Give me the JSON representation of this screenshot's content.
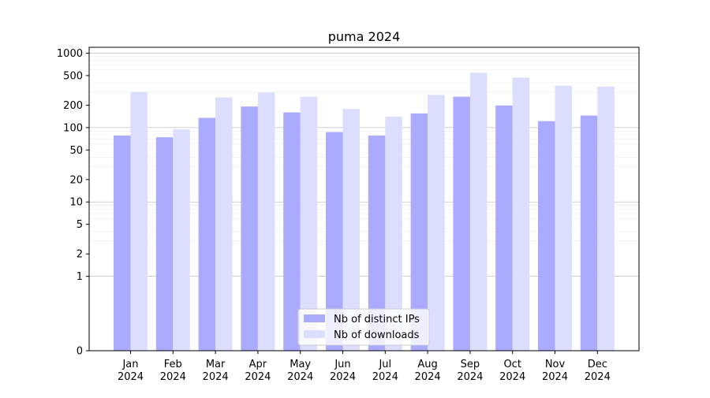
{
  "chart_data": {
    "type": "bar",
    "title": "puma 2024",
    "xlabel": "",
    "ylabel": "",
    "y_scale": "symlog",
    "ylim": [
      0,
      1200
    ],
    "y_ticks": [
      0,
      1,
      2,
      5,
      10,
      20,
      50,
      100,
      200,
      500,
      1000
    ],
    "categories": [
      {
        "month": "Jan",
        "year": "2024"
      },
      {
        "month": "Feb",
        "year": "2024"
      },
      {
        "month": "Mar",
        "year": "2024"
      },
      {
        "month": "Apr",
        "year": "2024"
      },
      {
        "month": "May",
        "year": "2024"
      },
      {
        "month": "Jun",
        "year": "2024"
      },
      {
        "month": "Jul",
        "year": "2024"
      },
      {
        "month": "Aug",
        "year": "2024"
      },
      {
        "month": "Sep",
        "year": "2024"
      },
      {
        "month": "Oct",
        "year": "2024"
      },
      {
        "month": "Nov",
        "year": "2024"
      },
      {
        "month": "Dec",
        "year": "2024"
      }
    ],
    "series": [
      {
        "name": "Nb of distinct IPs",
        "color": "#aaaaff",
        "values": [
          78,
          74,
          135,
          192,
          160,
          87,
          78,
          155,
          260,
          198,
          122,
          145
        ]
      },
      {
        "name": "Nb of downloads",
        "color": "#ddddff",
        "values": [
          300,
          95,
          255,
          295,
          260,
          178,
          140,
          275,
          545,
          470,
          365,
          355
        ]
      }
    ],
    "grid": true,
    "legend_position": "bottom-center"
  }
}
